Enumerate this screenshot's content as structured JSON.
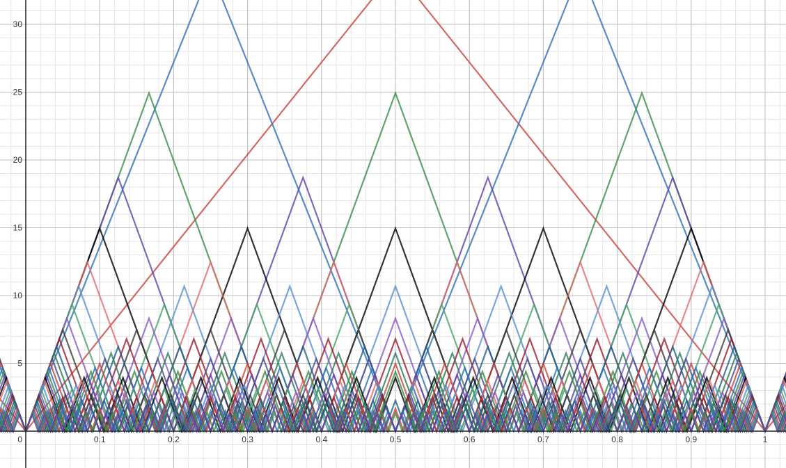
{
  "chart_data": {
    "type": "line",
    "title": "",
    "xlabel": "",
    "ylabel": "",
    "xlim": [
      -0.03,
      1.03
    ],
    "ylim": [
      -2.5,
      31.5
    ],
    "origin_label": "0",
    "x_ticks": [
      {
        "value": 0.1,
        "label": "0.1"
      },
      {
        "value": 0.2,
        "label": "0.2"
      },
      {
        "value": 0.3,
        "label": "0.3"
      },
      {
        "value": 0.4,
        "label": "0.4"
      },
      {
        "value": 0.5,
        "label": "0.5"
      },
      {
        "value": 0.6,
        "label": "0.6"
      },
      {
        "value": 0.7,
        "label": "0.7"
      },
      {
        "value": 0.8,
        "label": "0.8"
      },
      {
        "value": 0.9,
        "label": "0.9"
      },
      {
        "value": 1,
        "label": "1"
      }
    ],
    "y_ticks": [
      {
        "value": 5,
        "label": "5"
      },
      {
        "value": 10,
        "label": "10"
      },
      {
        "value": 15,
        "label": "15"
      },
      {
        "value": 20,
        "label": "20"
      },
      {
        "value": 25,
        "label": "25"
      },
      {
        "value": 30,
        "label": "30"
      }
    ],
    "grid": true,
    "legend": "none",
    "description": "Family of sawtooth-like curves y = |n·x − round(n·x)|·k for many frequencies, drawn as overlapping colored polylines",
    "colors": [
      "#c74440",
      "#2d70b3",
      "#388c46",
      "#6042a6",
      "#000000",
      "#e06b6b",
      "#5b8fd1",
      "#4aa36c",
      "#8a5cc2",
      "#3c3c3c",
      "#9b1e2e",
      "#1f5f8b",
      "#2a7a5a",
      "#4b4b8a"
    ],
    "series": [
      {
        "freq": 1,
        "amp": 34
      },
      {
        "freq": 2,
        "amp": 34
      },
      {
        "freq": 3,
        "amp": 34
      },
      {
        "freq": 4,
        "amp": 34
      },
      {
        "freq": 5,
        "amp": 34
      },
      {
        "freq": 6,
        "amp": 34
      },
      {
        "freq": 7,
        "amp": 34
      },
      {
        "freq": 8,
        "amp": 34
      },
      {
        "freq": 9,
        "amp": 34
      },
      {
        "freq": 10,
        "amp": 34
      },
      {
        "freq": 11,
        "amp": 34
      },
      {
        "freq": 12,
        "amp": 34
      },
      {
        "freq": 13,
        "amp": 34
      },
      {
        "freq": 14,
        "amp": 34
      },
      {
        "freq": 15,
        "amp": 34
      },
      {
        "freq": 16,
        "amp": 34
      },
      {
        "freq": 17,
        "amp": 34
      },
      {
        "freq": 18,
        "amp": 34
      },
      {
        "freq": 19,
        "amp": 34
      },
      {
        "freq": 20,
        "amp": 34
      },
      {
        "freq": 22,
        "amp": 34
      },
      {
        "freq": 24,
        "amp": 34
      },
      {
        "freq": 26,
        "amp": 34
      },
      {
        "freq": 28,
        "amp": 34
      },
      {
        "freq": 30,
        "amp": 34
      },
      {
        "freq": 33,
        "amp": 34
      },
      {
        "freq": 36,
        "amp": 34
      },
      {
        "freq": 40,
        "amp": 34
      },
      {
        "freq": 45,
        "amp": 34
      },
      {
        "freq": 50,
        "amp": 34
      },
      {
        "freq": 55,
        "amp": 34
      },
      {
        "freq": 60,
        "amp": 34
      }
    ]
  }
}
